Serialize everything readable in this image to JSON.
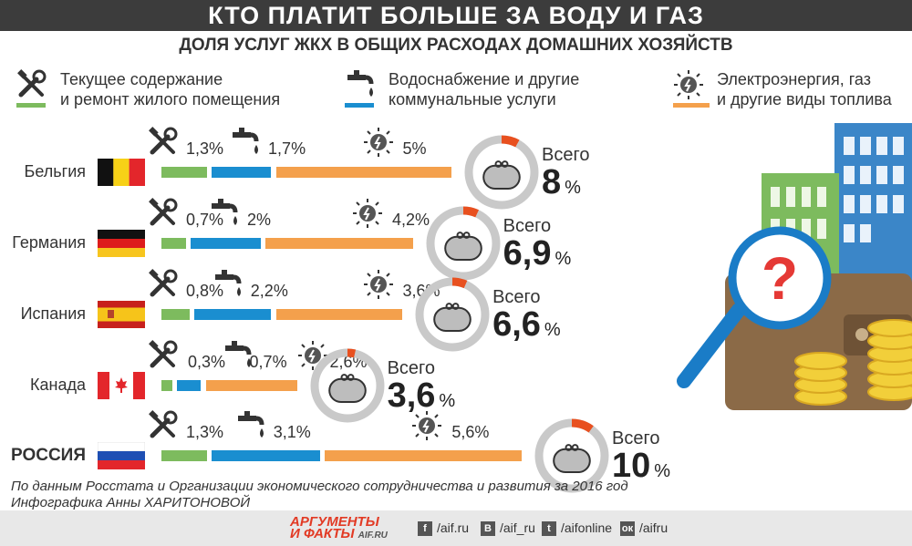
{
  "title": "КТО ПЛАТИТ БОЛЬШЕ ЗА ВОДУ И ГАЗ",
  "subtitle": "ДОЛЯ УСЛУГ ЖКХ В ОБЩИХ РАСХОДАХ ДОМАШНИХ ХОЗЯЙСТВ",
  "legend": [
    {
      "line1": "Текущее содержание",
      "line2": "и ремонт жилого помещения",
      "color": "#7dbb5e",
      "icon": "tools-icon"
    },
    {
      "line1": "Водоснабжение и другие",
      "line2": "коммунальные услуги",
      "color": "#1a8ed0",
      "icon": "water-tap-icon"
    },
    {
      "line1": "Электроэнергия, газ",
      "line2": "и другие виды топлива",
      "color": "#f4a04c",
      "icon": "energy-bulb-icon"
    }
  ],
  "total_word": "Всего",
  "pct_sign": "%",
  "chart_data": {
    "type": "bar",
    "title": "КТО ПЛАТИТ БОЛЬШЕ ЗА ВОДУ И ГАЗ",
    "subtitle": "ДОЛЯ УСЛУГ ЖКХ В ОБЩИХ РАСХОДАХ ДОМАШНИХ ХОЗЯЙСТВ",
    "stacked": true,
    "unit": "%",
    "categories": [
      "Бельгия",
      "Германия",
      "Испания",
      "Канада",
      "РОССИЯ"
    ],
    "series": [
      {
        "name": "Текущее содержание и ремонт жилого помещения",
        "color": "#7dbb5e",
        "values": [
          1.3,
          0.7,
          0.8,
          0.3,
          1.3
        ],
        "labels": [
          "1,3%",
          "0,7%",
          "0,8%",
          "0,3%",
          "1,3%"
        ]
      },
      {
        "name": "Водоснабжение и другие коммунальные услуги",
        "color": "#1a8ed0",
        "values": [
          1.7,
          2,
          2.2,
          0.7,
          3.1
        ],
        "labels": [
          "1,7%",
          "2%",
          "2,2%",
          "0,7%",
          "3,1%"
        ]
      },
      {
        "name": "Электроэнергия, газ и другие виды топлива",
        "color": "#f4a04c",
        "values": [
          5,
          4.2,
          3.6,
          2.6,
          5.6
        ],
        "labels": [
          "5%",
          "4,2%",
          "3,6%",
          "2,6%",
          "5,6%"
        ]
      }
    ],
    "totals": [
      8,
      6.9,
      6.6,
      3.6,
      10
    ],
    "total_labels": [
      "8",
      "6,9",
      "6,6",
      "3,6",
      "10"
    ]
  },
  "source": "По данным Росстата и Организации экономического сотрудничества и развития за 2016 год",
  "author": "Инфографика Анны ХАРИТОНОВОЙ",
  "footer": {
    "logo_line1": "АРГУМЕНТЫ",
    "logo_line2": "И ФАКТЫ",
    "logo_domain": "AIF.RU",
    "social": [
      {
        "glyph": "f",
        "label": "/aif.ru"
      },
      {
        "glyph": "В",
        "label": "/aif_ru"
      },
      {
        "glyph": "t",
        "label": "/aifonline"
      },
      {
        "glyph": "ок",
        "label": "/aifru"
      }
    ]
  }
}
